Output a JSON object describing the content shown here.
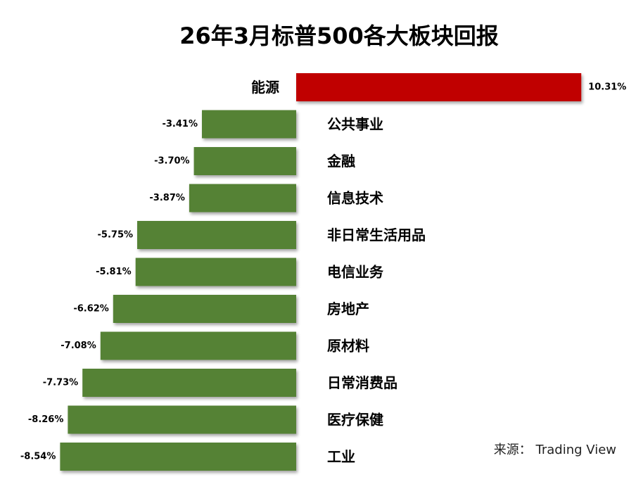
{
  "chart_data": {
    "type": "bar",
    "orientation": "horizontal",
    "title": "26年3月标普500各大板块回报",
    "categories": [
      "能源",
      "公共事业",
      "金融",
      "信息技术",
      "非日常生活用品",
      "电信业务",
      "房地产",
      "原材料",
      "日常消费品",
      "医疗保健",
      "工业"
    ],
    "values": [
      10.31,
      -3.41,
      -3.7,
      -3.87,
      -5.75,
      -5.81,
      -6.62,
      -7.08,
      -7.73,
      -8.26,
      -8.54
    ],
    "value_labels": [
      "10.31%",
      "-3.41%",
      "-3.70%",
      "-3.87%",
      "-5.75%",
      "-5.81%",
      "-6.62%",
      "-7.08%",
      "-7.73%",
      "-8.26%",
      "-8.54%"
    ],
    "colors": {
      "positive": "#c00000",
      "negative": "#548235"
    },
    "grid": false,
    "legend": "none"
  },
  "source": "来源：  Trading View"
}
